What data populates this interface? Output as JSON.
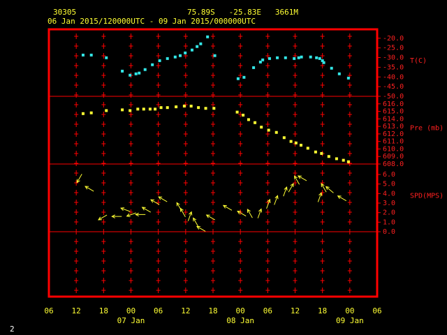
{
  "header": {
    "station": "30305",
    "location": "75.89S   -25.83E   3661M",
    "period": "06 Jan 2015/120000UTC - 09 Jan 2015/000000UTC",
    "frame_number": "2"
  },
  "time_axis": {
    "xlim": [
      6,
      78
    ],
    "xticks": [
      {
        "value": 6,
        "label": "06"
      },
      12,
      18,
      {
        "value": 24,
        "label": "00"
      },
      {
        "value": 30,
        "label": "06"
      },
      {
        "value": 36,
        "label": "12"
      },
      {
        "value": 42,
        "label": "18"
      },
      {
        "value": 48,
        "label": "00"
      },
      {
        "value": 54,
        "label": "06"
      },
      {
        "value": 60,
        "label": "12"
      },
      {
        "value": 66,
        "label": "18"
      },
      {
        "value": 72,
        "label": "00"
      },
      {
        "value": 78,
        "label": "06"
      }
    ],
    "day_labels": [
      {
        "value": 24,
        "label": "07 Jan"
      },
      {
        "value": 48,
        "label": "08 Jan"
      },
      {
        "value": 72,
        "label": "09 Jan"
      }
    ]
  },
  "chart_data": [
    {
      "type": "scatter",
      "label": "T(C)",
      "color": "#33e6e6",
      "ylim": [
        -50,
        -15.4
      ],
      "yticks": [
        {
          "value": -20,
          "label": "-20.0"
        },
        {
          "value": -25,
          "label": "-25.0"
        },
        {
          "value": -30,
          "label": "-30.0"
        },
        {
          "value": -35,
          "label": "-35.0"
        },
        {
          "value": -40,
          "label": "-40.0"
        },
        {
          "value": -45,
          "label": "-45.0"
        },
        {
          "value": -50,
          "label": "-50.0"
        }
      ],
      "x": [
        13.5,
        15.3,
        18.6,
        22.1,
        23.8,
        25.1,
        25.8,
        27.1,
        28.7,
        30.3,
        32.0,
        33.7,
        34.8,
        35.9,
        37.4,
        38.5,
        39.3,
        40.8,
        42.4,
        47.5,
        48.8,
        50.9,
        52.4,
        52.9,
        54.4,
        56.1,
        57.9,
        59.8,
        60.8,
        61.4,
        63.4,
        64.7,
        65.4,
        66.0,
        66.3,
        68.0,
        69.7,
        71.7
      ],
      "values": [
        -28.7,
        -28.7,
        -30.1,
        -37.0,
        -39.1,
        -38.4,
        -38.0,
        -36.2,
        -33.7,
        -31.6,
        -30.5,
        -29.7,
        -29.0,
        -27.6,
        -26.1,
        -24.3,
        -22.9,
        -19.3,
        -29.0,
        -40.9,
        -40.2,
        -35.2,
        -32.3,
        -31.2,
        -30.5,
        -30.1,
        -30.1,
        -30.5,
        -30.1,
        -29.7,
        -29.7,
        -30.1,
        -30.5,
        -31.6,
        -32.6,
        -35.5,
        -38.4,
        -40.6
      ]
    },
    {
      "type": "scatter",
      "label": "Pre (mb)",
      "color": "#ffff33",
      "ylim": [
        608,
        617
      ],
      "yticks": [
        {
          "value": 616,
          "label": "616.0"
        },
        {
          "value": 615,
          "label": "615.0"
        },
        {
          "value": 614,
          "label": "614.0"
        },
        {
          "value": 613,
          "label": "613.0"
        },
        {
          "value": 612,
          "label": "612.0"
        },
        {
          "value": 611,
          "label": "611.0"
        },
        {
          "value": 610,
          "label": "610.0"
        },
        {
          "value": 609,
          "label": "609.0"
        },
        {
          "value": 608,
          "label": "608.0"
        }
      ],
      "x": [
        13.5,
        15.3,
        18.6,
        22.1,
        23.8,
        25.5,
        26.8,
        28.2,
        29.3,
        30.6,
        32.0,
        33.9,
        35.7,
        37.2,
        38.8,
        40.4,
        42.2,
        47.3,
        48.6,
        49.8,
        51.2,
        52.6,
        54.2,
        55.9,
        57.6,
        59.1,
        60.2,
        61.3,
        62.8,
        64.5,
        65.8,
        67.4,
        69.1,
        70.6,
        71.7
      ],
      "values": [
        614.7,
        614.8,
        615.1,
        615.2,
        615.1,
        615.3,
        615.3,
        615.3,
        615.3,
        615.5,
        615.5,
        615.6,
        615.7,
        615.7,
        615.5,
        615.4,
        615.4,
        614.9,
        614.5,
        613.9,
        613.5,
        612.9,
        612.5,
        612.2,
        611.5,
        611.0,
        610.8,
        610.5,
        610.1,
        609.6,
        609.4,
        609.0,
        608.7,
        608.5,
        608.3
      ]
    },
    {
      "type": "vector",
      "label": "SPD(MPS)",
      "color": "#ffff33",
      "ylim": [
        0,
        7.1
      ],
      "yticks": [
        {
          "value": 6,
          "label": "6.0"
        },
        {
          "value": 5,
          "label": "5.0"
        },
        {
          "value": 4,
          "label": "4.0"
        },
        {
          "value": 3,
          "label": "3.0"
        },
        {
          "value": 2,
          "label": "2.0"
        },
        {
          "value": 1,
          "label": "1.0"
        },
        {
          "value": 0,
          "label": "0.0"
        }
      ],
      "x": [
        12.7,
        14.9,
        17.8,
        20.9,
        22.8,
        24.1,
        26.1,
        27.4,
        29.3,
        31.0,
        34.6,
        35.4,
        36.9,
        38.2,
        39.4,
        41.5,
        45.2,
        48.3,
        50.1,
        52.2,
        54.1,
        55.8,
        57.8,
        59.1,
        60.4,
        61.6,
        65.4,
        66.3,
        67.6,
        70.3
      ],
      "values": [
        5.6,
        4.5,
        1.5,
        1.6,
        2.3,
        1.8,
        1.8,
        2.3,
        3.1,
        3.4,
        2.6,
        2.0,
        1.6,
        1.0,
        0.3,
        1.5,
        2.5,
        1.9,
        1.9,
        1.9,
        2.9,
        3.3,
        4.2,
        4.6,
        5.4,
        5.6,
        3.6,
        4.6,
        4.4,
        3.5
      ],
      "directions": [
        210,
        300,
        240,
        270,
        290,
        250,
        270,
        300,
        300,
        300,
        330,
        330,
        20,
        330,
        300,
        300,
        300,
        300,
        330,
        20,
        20,
        20,
        20,
        30,
        330,
        300,
        20,
        330,
        310,
        300
      ]
    }
  ]
}
